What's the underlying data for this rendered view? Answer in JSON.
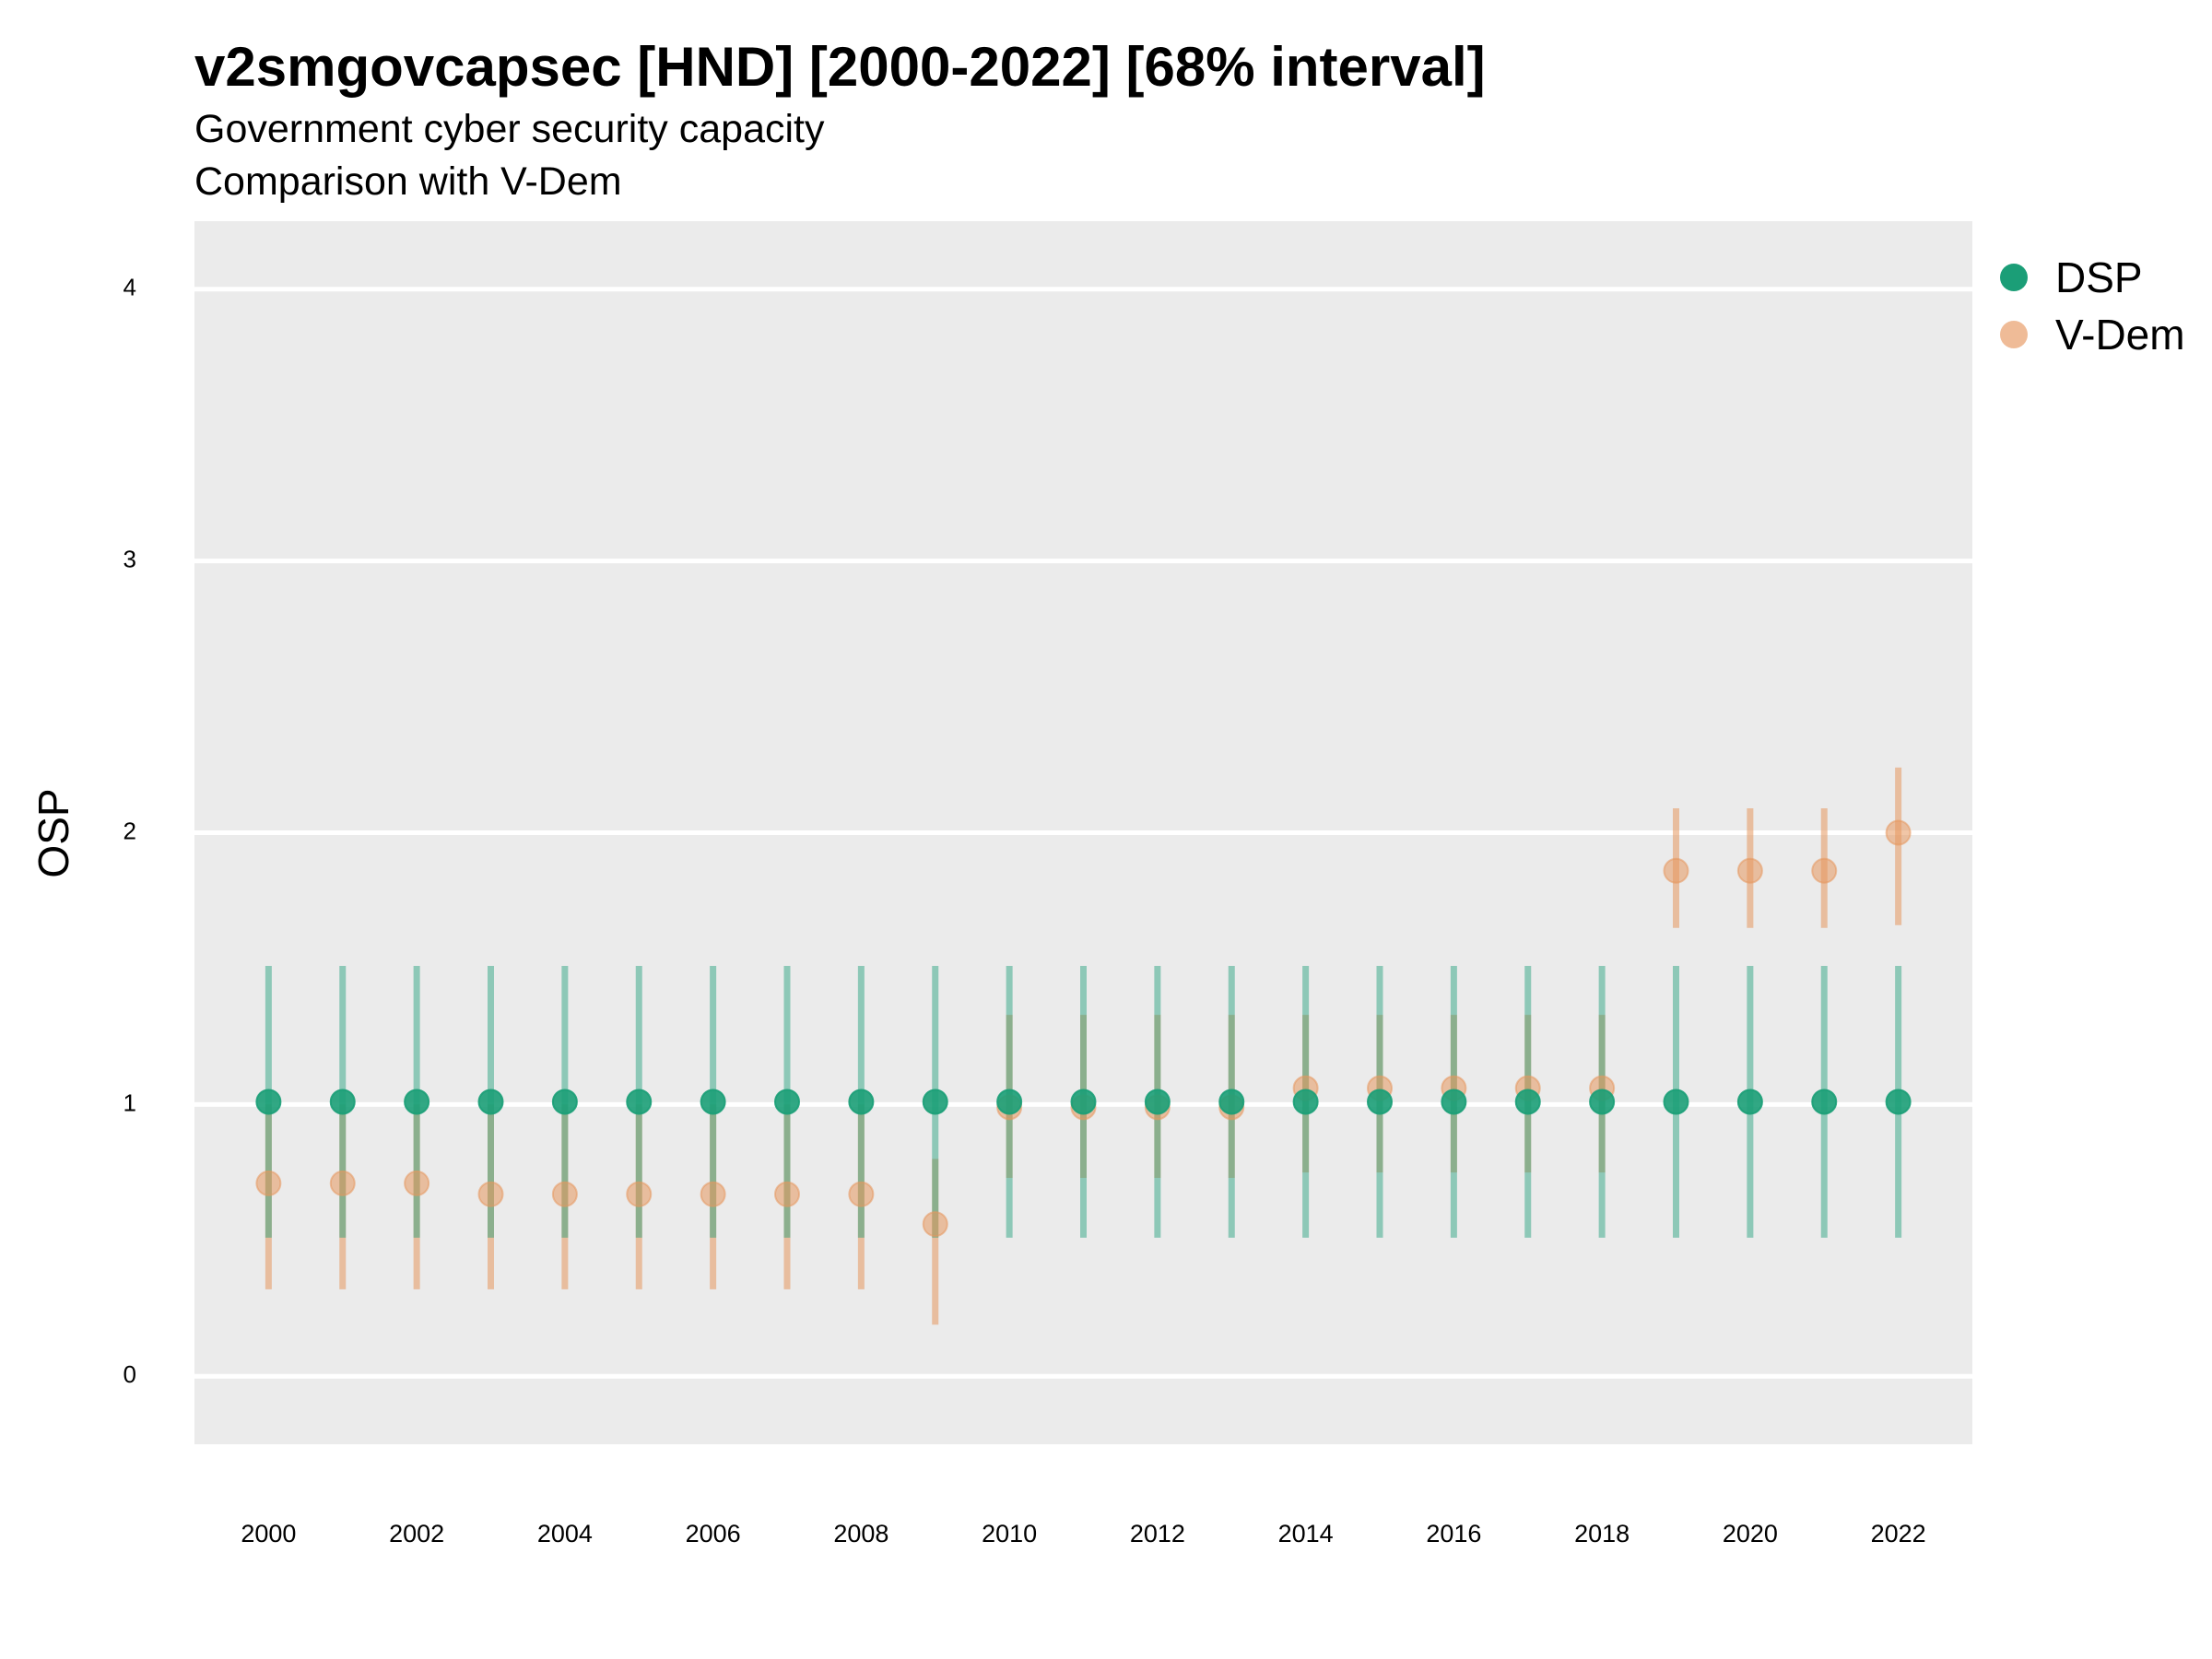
{
  "title": "v2smgovcapsec [HND] [2000-2022] [68% interval]",
  "subtitle": "Government cyber security capacity",
  "caption": "Comparison with V-Dem",
  "colors": {
    "DSP": "#1b9e77",
    "V-Dem": "#e6975f",
    "panel": "#ebebeb",
    "grid": "#ffffff"
  },
  "legend": {
    "items": [
      {
        "name": "DSP"
      },
      {
        "name": "V-Dem"
      }
    ],
    "position": "right"
  },
  "chart_data": {
    "type": "scatter",
    "title": "v2smgovcapsec [HND] [2000-2022] [68% interval]",
    "xlabel": "",
    "ylabel": "OSP",
    "ylim": [
      -0.25,
      4.25
    ],
    "xlim": [
      1999,
      2023
    ],
    "y_ticks": [
      "0",
      "1",
      "2",
      "3",
      "4"
    ],
    "x_ticks": [
      "2000",
      "2002",
      "2004",
      "2006",
      "2008",
      "2010",
      "2012",
      "2014",
      "2016",
      "2018",
      "2020",
      "2022"
    ],
    "grid": true,
    "series": [
      {
        "name": "DSP",
        "x": [
          2000,
          2001,
          2002,
          2003,
          2004,
          2005,
          2006,
          2007,
          2008,
          2009,
          2010,
          2011,
          2012,
          2013,
          2014,
          2015,
          2016,
          2017,
          2018,
          2019,
          2020,
          2021,
          2022
        ],
        "y": [
          1.01,
          1.01,
          1.01,
          1.01,
          1.01,
          1.01,
          1.01,
          1.01,
          1.01,
          1.01,
          1.01,
          1.01,
          1.01,
          1.01,
          1.01,
          1.01,
          1.01,
          1.01,
          1.01,
          1.01,
          1.01,
          1.01,
          1.01
        ],
        "lower": [
          0.51,
          0.51,
          0.51,
          0.51,
          0.51,
          0.51,
          0.51,
          0.51,
          0.51,
          0.51,
          0.51,
          0.51,
          0.51,
          0.51,
          0.51,
          0.51,
          0.51,
          0.51,
          0.51,
          0.51,
          0.51,
          0.51,
          0.51
        ],
        "upper": [
          1.51,
          1.51,
          1.51,
          1.51,
          1.51,
          1.51,
          1.51,
          1.51,
          1.51,
          1.51,
          1.51,
          1.51,
          1.51,
          1.51,
          1.51,
          1.51,
          1.51,
          1.51,
          1.51,
          1.51,
          1.51,
          1.51,
          1.51
        ]
      },
      {
        "name": "V-Dem",
        "x": [
          2000,
          2001,
          2002,
          2003,
          2004,
          2005,
          2006,
          2007,
          2008,
          2009,
          2010,
          2011,
          2012,
          2013,
          2014,
          2015,
          2016,
          2017,
          2018,
          2019,
          2020,
          2021,
          2022
        ],
        "y": [
          0.71,
          0.71,
          0.71,
          0.67,
          0.67,
          0.67,
          0.67,
          0.67,
          0.67,
          0.56,
          0.99,
          0.99,
          0.99,
          0.99,
          1.06,
          1.06,
          1.06,
          1.06,
          1.06,
          1.86,
          1.86,
          1.86,
          2.0
        ],
        "lower": [
          0.32,
          0.32,
          0.32,
          0.32,
          0.32,
          0.32,
          0.32,
          0.32,
          0.32,
          0.19,
          0.73,
          0.73,
          0.73,
          0.73,
          0.75,
          0.75,
          0.75,
          0.75,
          0.75,
          1.65,
          1.65,
          1.65,
          1.66
        ],
        "upper": [
          1.0,
          1.0,
          1.0,
          1.0,
          1.0,
          1.0,
          1.0,
          1.0,
          1.0,
          0.8,
          1.33,
          1.33,
          1.33,
          1.33,
          1.33,
          1.33,
          1.33,
          1.33,
          1.33,
          2.09,
          2.09,
          2.09,
          2.24
        ]
      }
    ]
  }
}
